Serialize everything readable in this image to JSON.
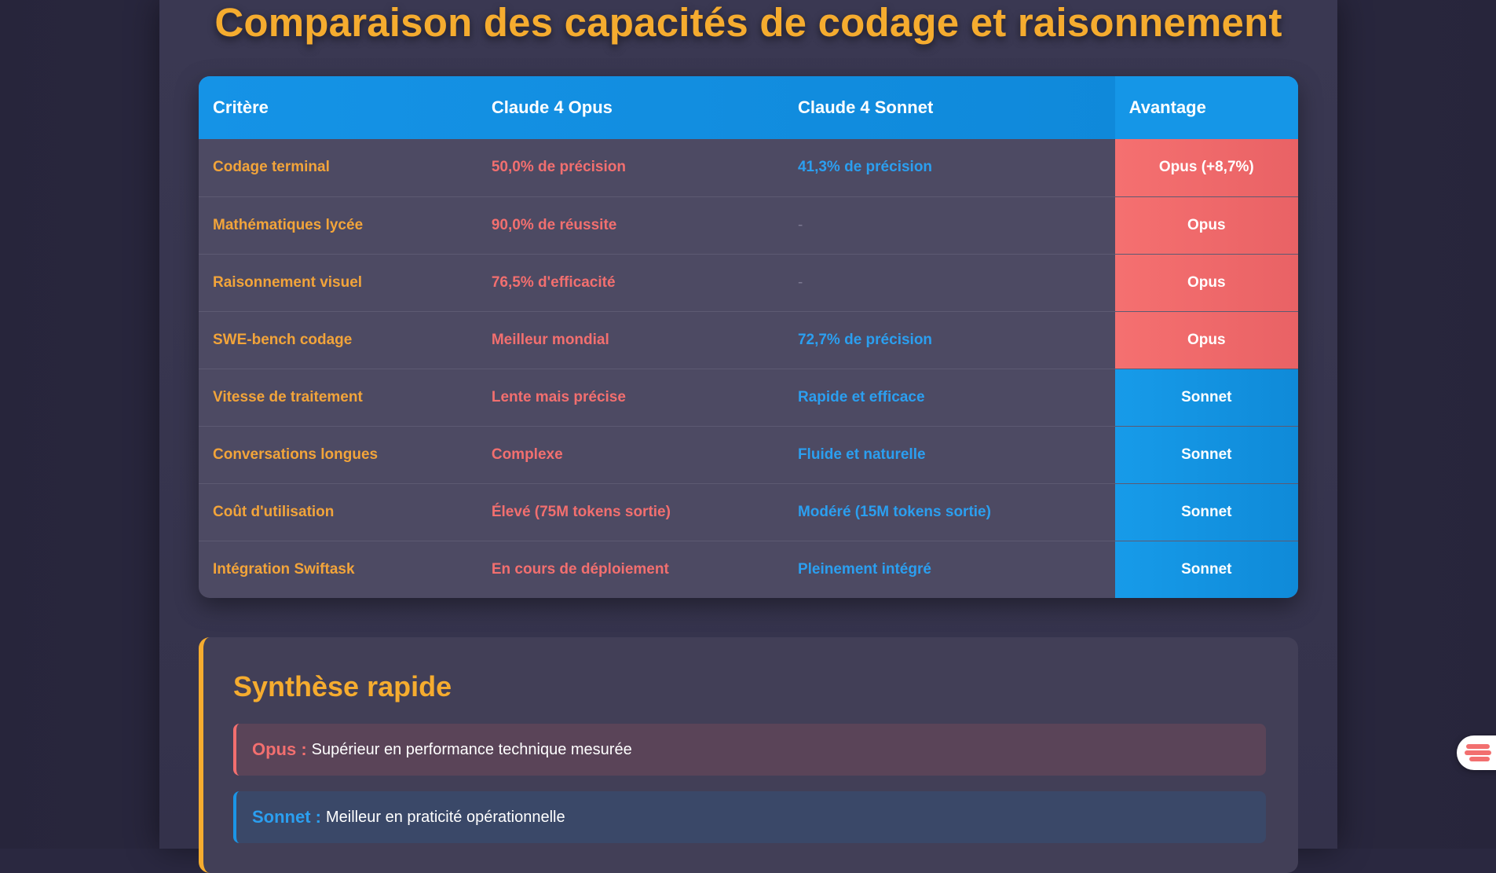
{
  "title": "Comparaison des capacités de codage et raisonnement",
  "table": {
    "headers": {
      "criterion": "Critère",
      "opus": "Claude 4 Opus",
      "sonnet": "Claude 4 Sonnet",
      "advantage": "Avantage"
    },
    "rows": [
      {
        "criterion": "Codage terminal",
        "opus": "50,0% de précision",
        "sonnet": "41,3% de précision",
        "advantage": "Opus (+8,7%)"
      },
      {
        "criterion": "Mathématiques lycée",
        "opus": "90,0% de réussite",
        "sonnet": "-",
        "advantage": "Opus"
      },
      {
        "criterion": "Raisonnement visuel",
        "opus": "76,5% d'efficacité",
        "sonnet": "-",
        "advantage": "Opus"
      },
      {
        "criterion": "SWE-bench codage",
        "opus": "Meilleur mondial",
        "sonnet": "72,7% de précision",
        "advantage": "Opus"
      },
      {
        "criterion": "Vitesse de traitement",
        "opus": "Lente mais précise",
        "sonnet": "Rapide et efficace",
        "advantage": "Sonnet"
      },
      {
        "criterion": "Conversations longues",
        "opus": "Complexe",
        "sonnet": "Fluide et naturelle",
        "advantage": "Sonnet"
      },
      {
        "criterion": "Coût d'utilisation",
        "opus": "Élevé (75M tokens sortie)",
        "sonnet": "Modéré (15M tokens sortie)",
        "advantage": "Sonnet"
      },
      {
        "criterion": "Intégration Swiftask",
        "opus": "En cours de déploiement",
        "sonnet": "Pleinement intégré",
        "advantage": "Sonnet"
      }
    ]
  },
  "summary": {
    "title": "Synthèse rapide",
    "opus_label": "Opus :",
    "opus_text": "Supérieur en performance technique mesurée",
    "sonnet_label": "Sonnet :",
    "sonnet_text": "Meilleur en praticité opérationnelle"
  },
  "colors": {
    "accent": "#f5ac2f",
    "opus": "#f26f6f",
    "sonnet": "#1b95e6"
  },
  "floating_button": {
    "icon": "widget-menu-icon"
  }
}
